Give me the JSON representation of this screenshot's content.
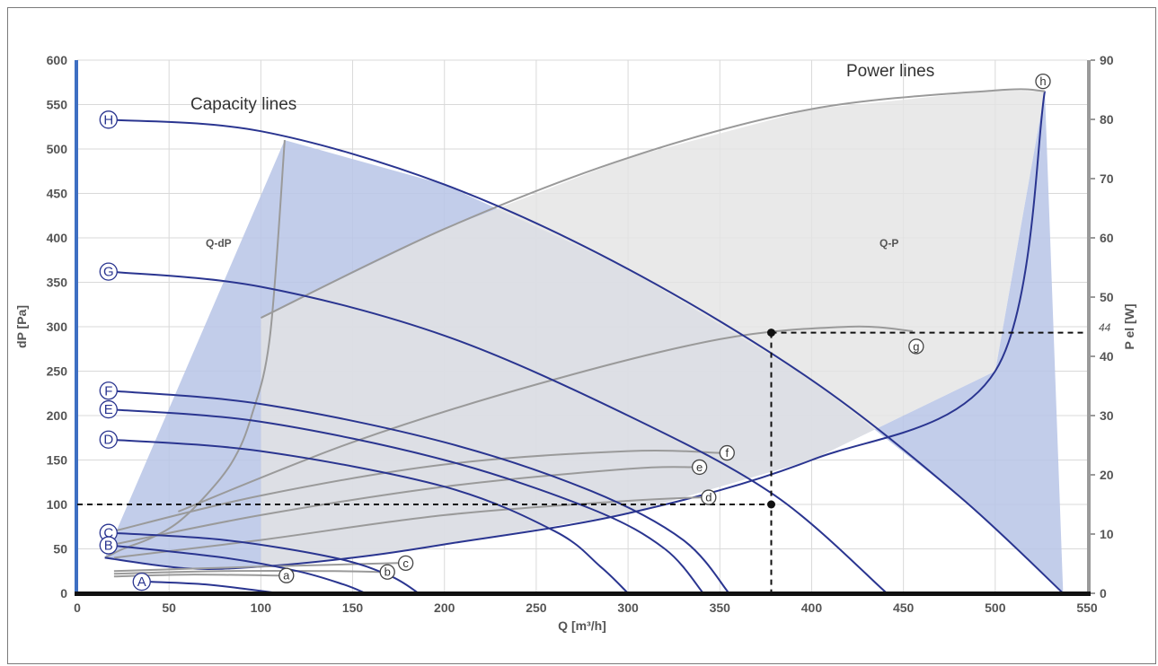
{
  "chart_data": {
    "type": "line",
    "title": "",
    "xlabel": "Q [m³/h]",
    "ylabel_left": "dP [Pa]",
    "ylabel_right": "P el [W]",
    "xlim": [
      0,
      550
    ],
    "ylim_left": [
      0,
      600
    ],
    "ylim_right": [
      0,
      90
    ],
    "x_ticks": [
      0,
      50,
      100,
      150,
      200,
      250,
      300,
      350,
      400,
      450,
      500,
      550
    ],
    "y_left_ticks": [
      0,
      50,
      100,
      150,
      200,
      250,
      300,
      350,
      400,
      450,
      500,
      550,
      600
    ],
    "y_right_ticks": [
      0,
      10,
      20,
      30,
      40,
      50,
      60,
      70,
      80,
      90
    ],
    "grid": true,
    "annotations": {
      "capacity_lines": "Capacity lines",
      "power_lines": "Power lines",
      "region_qdp": "Q-dP",
      "region_qp": "Q-P",
      "marker_power_value": "44"
    },
    "capacity_series": [
      {
        "name": "H",
        "points": [
          [
            18,
            533
          ],
          [
            100,
            520
          ],
          [
            200,
            460
          ],
          [
            300,
            365
          ],
          [
            400,
            240
          ],
          [
            480,
            110
          ],
          [
            537,
            0
          ]
        ]
      },
      {
        "name": "G",
        "points": [
          [
            18,
            362
          ],
          [
            100,
            345
          ],
          [
            200,
            290
          ],
          [
            300,
            200
          ],
          [
            380,
            110
          ],
          [
            441,
            0
          ]
        ]
      },
      {
        "name": "F",
        "points": [
          [
            18,
            228
          ],
          [
            100,
            213
          ],
          [
            200,
            170
          ],
          [
            280,
            115
          ],
          [
            330,
            60
          ],
          [
            355,
            0
          ]
        ]
      },
      {
        "name": "E",
        "points": [
          [
            18,
            207
          ],
          [
            100,
            193
          ],
          [
            200,
            150
          ],
          [
            280,
            95
          ],
          [
            320,
            50
          ],
          [
            341,
            0
          ]
        ]
      },
      {
        "name": "D",
        "points": [
          [
            18,
            173
          ],
          [
            100,
            160
          ],
          [
            200,
            120
          ],
          [
            260,
            70
          ],
          [
            285,
            30
          ],
          [
            300,
            0
          ]
        ]
      },
      {
        "name": "C",
        "points": [
          [
            18,
            68
          ],
          [
            80,
            60
          ],
          [
            140,
            40
          ],
          [
            170,
            20
          ],
          [
            186,
            0
          ]
        ]
      },
      {
        "name": "B",
        "points": [
          [
            18,
            54
          ],
          [
            80,
            40
          ],
          [
            120,
            25
          ],
          [
            145,
            10
          ],
          [
            157,
            0
          ]
        ]
      },
      {
        "name": "A",
        "points": [
          [
            40,
            13
          ],
          [
            70,
            10
          ],
          [
            95,
            4
          ],
          [
            110,
            0
          ]
        ]
      }
    ],
    "power_series": [
      {
        "name": "a",
        "points": [
          [
            20,
            19
          ],
          [
            60,
            21
          ],
          [
            110,
            20
          ]
        ]
      },
      {
        "name": "b",
        "points": [
          [
            20,
            22
          ],
          [
            80,
            25
          ],
          [
            140,
            25
          ],
          [
            165,
            24
          ]
        ]
      },
      {
        "name": "c",
        "points": [
          [
            20,
            25
          ],
          [
            100,
            30
          ],
          [
            175,
            34
          ]
        ]
      },
      {
        "name": "d",
        "points": [
          [
            20,
            40
          ],
          [
            100,
            60
          ],
          [
            200,
            88
          ],
          [
            300,
            104
          ],
          [
            340,
            108
          ]
        ]
      },
      {
        "name": "e",
        "points": [
          [
            20,
            55
          ],
          [
            100,
            88
          ],
          [
            200,
            120
          ],
          [
            300,
            140
          ],
          [
            335,
            142
          ]
        ]
      },
      {
        "name": "f",
        "points": [
          [
            20,
            70
          ],
          [
            100,
            110
          ],
          [
            200,
            145
          ],
          [
            300,
            160
          ],
          [
            350,
            158
          ]
        ]
      },
      {
        "name": "g",
        "points": [
          [
            55,
            92
          ],
          [
            150,
            170
          ],
          [
            250,
            235
          ],
          [
            350,
            286
          ],
          [
            420,
            300
          ],
          [
            455,
            295
          ]
        ]
      },
      {
        "name": "h",
        "points": [
          [
            100,
            310
          ],
          [
            200,
            410
          ],
          [
            300,
            490
          ],
          [
            400,
            545
          ],
          [
            500,
            566
          ],
          [
            527,
            565
          ]
        ]
      }
    ],
    "boundary_qdp_left": [
      [
        15,
        40
      ],
      [
        25,
        50
      ],
      [
        40,
        62
      ],
      [
        55,
        80
      ],
      [
        70,
        110
      ],
      [
        85,
        150
      ],
      [
        95,
        200
      ],
      [
        105,
        290
      ],
      [
        113,
        510
      ]
    ],
    "boundary_qdp_bottom": [
      [
        15,
        40
      ],
      [
        60,
        28
      ],
      [
        100,
        30
      ],
      [
        150,
        40
      ],
      [
        200,
        55
      ],
      [
        300,
        90
      ],
      [
        400,
        150
      ],
      [
        500,
        250
      ],
      [
        527,
        565
      ]
    ],
    "boundary_qp_upper": [
      [
        100,
        310
      ],
      [
        200,
        410
      ],
      [
        300,
        490
      ],
      [
        400,
        545
      ],
      [
        500,
        566
      ],
      [
        527,
        565
      ]
    ],
    "operating_point_1": {
      "q": 378,
      "dp": 100
    },
    "operating_point_2": {
      "q": 378,
      "p_el": 44
    },
    "colors": {
      "capacity_line": "#2a3590",
      "power_line": "#9a9a9a",
      "qdp_fill": "#b7c4e6",
      "qp_fill": "#e3e3e3",
      "overlap_fill": "#bcc3d6",
      "left_axis": "#3e6fc2",
      "right_axis": "#9a9a9a",
      "dashed": "#111111",
      "grid": "#d9d9d9"
    }
  }
}
